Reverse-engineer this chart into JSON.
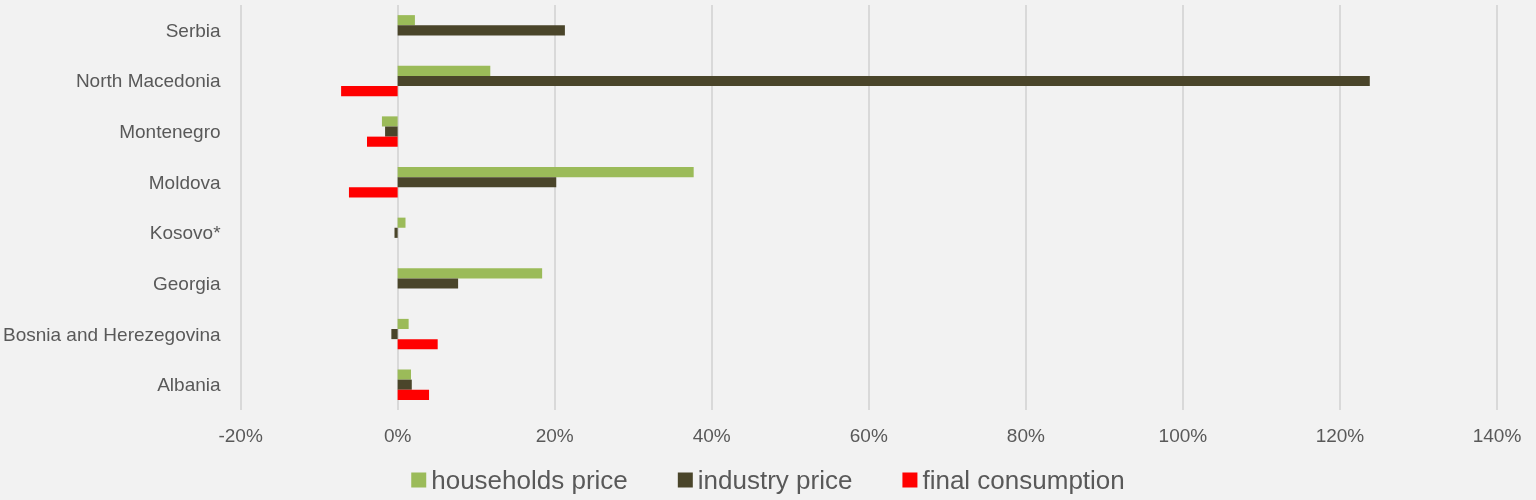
{
  "chart_data": {
    "type": "bar",
    "orientation": "horizontal",
    "categories": [
      "Serbia",
      "North Macedonia",
      "Montenegro",
      "Moldova",
      "Kosovo*",
      "Georgia",
      "Bosnia and Herezegovina",
      "Albania"
    ],
    "series": [
      {
        "name": "households price",
        "color": "#9bbb59",
        "values": [
          2.2,
          11.8,
          -2.0,
          37.7,
          1.0,
          18.4,
          1.4,
          1.7
        ]
      },
      {
        "name": "industry price",
        "color": "#4a452a",
        "values": [
          21.3,
          123.8,
          -1.6,
          20.2,
          -0.4,
          7.7,
          -0.8,
          1.8
        ]
      },
      {
        "name": "final consumption",
        "color": "#ff0000",
        "values": [
          null,
          -7.2,
          -3.9,
          -6.2,
          null,
          null,
          5.1,
          4.0
        ]
      }
    ],
    "xlim": [
      -20,
      140
    ],
    "xticks": [
      {
        "value": -20,
        "label": "-20%"
      },
      {
        "value": 0,
        "label": "0%"
      },
      {
        "value": 20,
        "label": "20%"
      },
      {
        "value": 40,
        "label": "40%"
      },
      {
        "value": 60,
        "label": "60%"
      },
      {
        "value": 80,
        "label": "80%"
      },
      {
        "value": 100,
        "label": "100%"
      },
      {
        "value": 120,
        "label": "120%"
      },
      {
        "value": 140,
        "label": "140%"
      }
    ],
    "grid": "x",
    "legend": "bottom"
  }
}
